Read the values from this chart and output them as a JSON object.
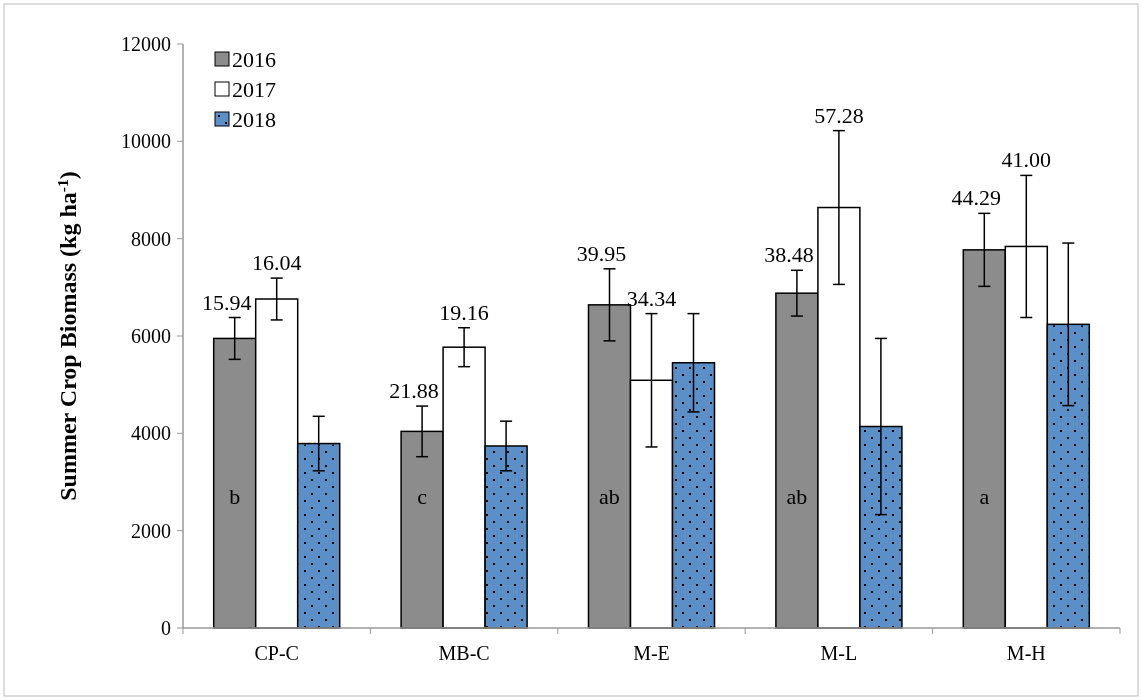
{
  "chart_data": {
    "type": "bar",
    "ylabel": "Summer Crop Biomass (kg ha$^{-1}$)",
    "categories": [
      "CP-C",
      "MB-C",
      "M-E",
      "M-L",
      "M-H"
    ],
    "series": [
      {
        "name": "2016",
        "color": "#8c8c8c",
        "values": [
          5950,
          4040,
          6640,
          6880,
          7770
        ],
        "errors": [
          430,
          520,
          740,
          470,
          750
        ]
      },
      {
        "name": "2017",
        "color": "#ffffff",
        "values": [
          6760,
          5770,
          5090,
          8640,
          7840
        ],
        "errors": [
          430,
          400,
          1370,
          1580,
          1460
        ]
      },
      {
        "name": "2018",
        "color": "#5b8fc7",
        "values": [
          3790,
          3740,
          5450,
          4140,
          6240
        ],
        "errors": [
          560,
          510,
          1010,
          1810,
          1670
        ]
      }
    ],
    "ylim": [
      0,
      12000
    ],
    "yticks": [
      0,
      2000,
      4000,
      6000,
      8000,
      10000,
      12000
    ],
    "grid": false,
    "legend": "top left",
    "annotations": [
      "15.94",
      "16.04",
      "21.88",
      "19.16",
      "39.95",
      "34.34",
      "38.48",
      "57.28",
      "44.29",
      "41.00",
      "b",
      "c",
      "ab",
      "ab",
      "a"
    ]
  }
}
